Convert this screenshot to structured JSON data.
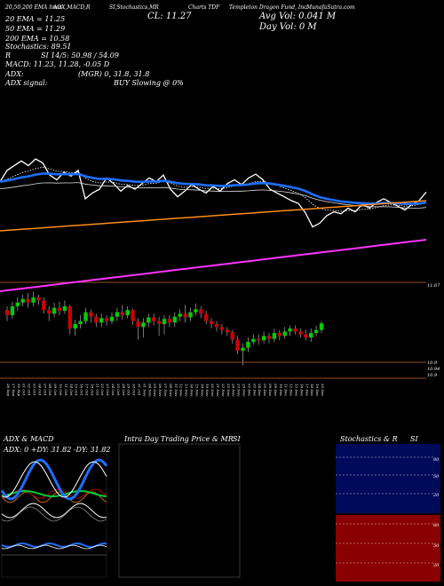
{
  "header": {
    "line1_left": "20,50,200 EMA lines",
    "line1_mid1": "ADX,MACD,R",
    "line1_mid2": "SI,Stochastics,MR",
    "line1_mid3": "MR",
    "line1_mid4": "Charts TDF",
    "line1_right": "Templeton Dragon Fund, Inc.",
    "line1_site": "MunafaSutra.com",
    "cl": "CL: 11.27",
    "avg_vol": "Avg Vol: 0.041 M",
    "day_vol": "Day Vol: 0  M",
    "ema20": "20  EMA = 11.25",
    "ema50": "50  EMA = 11.29",
    "ema200": "200  EMA = 10.58",
    "stochastics": "Stochastics: 89.51",
    "r": "R",
    "si": "SI 14/5: 50.98 / 54.09",
    "macd": "MACD: 11.23, 11.28, -0.05 D",
    "adx": "ADX:",
    "adx_val": "(MGR) 0,  31.8,  31.8",
    "adx_signal": "ADX signal:",
    "buy_slowing": "BUY Slowing @ 0%"
  },
  "colors": {
    "background": "#000000",
    "ema20": "#ffffff",
    "ema50": "#1e6fff",
    "ema200": "#ff8c1a",
    "long_line": "#ff33ff",
    "up_candle": "#00cc00",
    "down_candle": "#cc0000",
    "ref_line": "#c86428"
  },
  "price_labels": {
    "p1": "11.67",
    "p2": "10.9",
    "p3": "10.94",
    "p4": "10.9"
  },
  "chart_data": {
    "type": "line",
    "x": [
      "26 Sep",
      "27 Sep",
      "30 Sep",
      "01 Oct",
      "02 Oct",
      "03 Oct",
      "04 Oct",
      "07 Oct",
      "08 Oct",
      "09 Oct",
      "10 Oct",
      "11 Oct",
      "14 Oct",
      "15 Oct",
      "16 Oct",
      "17 Oct",
      "18 Oct",
      "21 Oct",
      "22 Oct",
      "23 Oct",
      "24 Oct",
      "25 Oct",
      "28 Oct",
      "29 Oct",
      "30 Oct",
      "31 Oct",
      "01 Nov",
      "04 Nov",
      "05 Nov",
      "06 Nov",
      "07 Nov",
      "08 Nov",
      "11 Nov",
      "12 Nov",
      "13 Nov",
      "14 Nov",
      "15 Nov",
      "18 Nov",
      "19 Nov",
      "20 Nov",
      "21 Nov",
      "22 Nov",
      "25 Nov",
      "26 Nov",
      "27 Nov",
      "29 Nov",
      "02 Dec",
      "03 Dec",
      "04 Dec",
      "05 Dec",
      "06 Dec",
      "09 Dec",
      "10 Dec",
      "11 Dec",
      "12 Dec",
      "13 Dec",
      "16 Dec",
      "17 Dec",
      "18 Dec",
      "19 Dec",
      "20 Dec"
    ],
    "candles": [
      {
        "o": 11.45,
        "c": 11.38,
        "h": 11.5,
        "l": 11.3
      },
      {
        "o": 11.38,
        "c": 11.5,
        "h": 11.56,
        "l": 11.33
      },
      {
        "o": 11.5,
        "c": 11.55,
        "h": 11.62,
        "l": 11.44
      },
      {
        "o": 11.55,
        "c": 11.6,
        "h": 11.66,
        "l": 11.5
      },
      {
        "o": 11.6,
        "c": 11.55,
        "h": 11.68,
        "l": 11.48
      },
      {
        "o": 11.55,
        "c": 11.62,
        "h": 11.7,
        "l": 11.5
      },
      {
        "o": 11.62,
        "c": 11.58,
        "h": 11.66,
        "l": 11.52
      },
      {
        "o": 11.58,
        "c": 11.45,
        "h": 11.62,
        "l": 11.4
      },
      {
        "o": 11.45,
        "c": 11.4,
        "h": 11.5,
        "l": 11.3
      },
      {
        "o": 11.4,
        "c": 11.48,
        "h": 11.55,
        "l": 11.35
      },
      {
        "o": 11.48,
        "c": 11.44,
        "h": 11.56,
        "l": 11.38
      },
      {
        "o": 11.44,
        "c": 11.5,
        "h": 11.58,
        "l": 11.4
      },
      {
        "o": 11.5,
        "c": 11.2,
        "h": 11.52,
        "l": 11.12
      },
      {
        "o": 11.2,
        "c": 11.26,
        "h": 11.32,
        "l": 11.1
      },
      {
        "o": 11.26,
        "c": 11.3,
        "h": 11.38,
        "l": 11.2
      },
      {
        "o": 11.3,
        "c": 11.42,
        "h": 11.48,
        "l": 11.26
      },
      {
        "o": 11.42,
        "c": 11.36,
        "h": 11.46,
        "l": 11.28
      },
      {
        "o": 11.36,
        "c": 11.28,
        "h": 11.4,
        "l": 11.22
      },
      {
        "o": 11.28,
        "c": 11.34,
        "h": 11.4,
        "l": 11.22
      },
      {
        "o": 11.34,
        "c": 11.3,
        "h": 11.38,
        "l": 11.24
      },
      {
        "o": 11.3,
        "c": 11.36,
        "h": 11.42,
        "l": 11.26
      },
      {
        "o": 11.36,
        "c": 11.42,
        "h": 11.48,
        "l": 11.3
      },
      {
        "o": 11.42,
        "c": 11.38,
        "h": 11.52,
        "l": 11.32
      },
      {
        "o": 11.38,
        "c": 11.45,
        "h": 11.5,
        "l": 11.34
      },
      {
        "o": 11.45,
        "c": 11.3,
        "h": 11.47,
        "l": 11.25
      },
      {
        "o": 11.3,
        "c": 11.22,
        "h": 11.34,
        "l": 11.05
      },
      {
        "o": 11.22,
        "c": 11.28,
        "h": 11.34,
        "l": 11.08
      },
      {
        "o": 11.28,
        "c": 11.35,
        "h": 11.4,
        "l": 11.22
      },
      {
        "o": 11.35,
        "c": 11.3,
        "h": 11.4,
        "l": 11.24
      },
      {
        "o": 11.3,
        "c": 11.26,
        "h": 11.36,
        "l": 11.1
      },
      {
        "o": 11.26,
        "c": 11.33,
        "h": 11.38,
        "l": 11.12
      },
      {
        "o": 11.33,
        "c": 11.28,
        "h": 11.38,
        "l": 11.22
      },
      {
        "o": 11.28,
        "c": 11.36,
        "h": 11.42,
        "l": 11.22
      },
      {
        "o": 11.36,
        "c": 11.4,
        "h": 11.46,
        "l": 11.3
      },
      {
        "o": 11.4,
        "c": 11.35,
        "h": 11.52,
        "l": 11.28
      },
      {
        "o": 11.35,
        "c": 11.42,
        "h": 11.48,
        "l": 11.3
      },
      {
        "o": 11.42,
        "c": 11.46,
        "h": 11.54,
        "l": 11.38
      },
      {
        "o": 11.46,
        "c": 11.4,
        "h": 11.5,
        "l": 11.34
      },
      {
        "o": 11.4,
        "c": 11.3,
        "h": 11.44,
        "l": 11.26
      },
      {
        "o": 11.3,
        "c": 11.26,
        "h": 11.34,
        "l": 11.2
      },
      {
        "o": 11.26,
        "c": 11.22,
        "h": 11.3,
        "l": 11.16
      },
      {
        "o": 11.22,
        "c": 11.18,
        "h": 11.26,
        "l": 11.12
      },
      {
        "o": 11.18,
        "c": 11.15,
        "h": 11.22,
        "l": 11.1
      },
      {
        "o": 11.15,
        "c": 11.05,
        "h": 11.18,
        "l": 11.0
      },
      {
        "o": 11.05,
        "c": 10.9,
        "h": 11.1,
        "l": 10.85
      },
      {
        "o": 10.9,
        "c": 10.94,
        "h": 11.0,
        "l": 10.7
      },
      {
        "o": 10.94,
        "c": 11.02,
        "h": 11.08,
        "l": 10.88
      },
      {
        "o": 11.02,
        "c": 11.06,
        "h": 11.12,
        "l": 10.98
      },
      {
        "o": 11.06,
        "c": 11.04,
        "h": 11.12,
        "l": 10.98
      },
      {
        "o": 11.04,
        "c": 11.1,
        "h": 11.16,
        "l": 11.0
      },
      {
        "o": 11.1,
        "c": 11.06,
        "h": 11.14,
        "l": 11.0
      },
      {
        "o": 11.06,
        "c": 11.14,
        "h": 11.2,
        "l": 11.02
      },
      {
        "o": 11.14,
        "c": 11.1,
        "h": 11.18,
        "l": 11.04
      },
      {
        "o": 11.1,
        "c": 11.16,
        "h": 11.22,
        "l": 11.06
      },
      {
        "o": 11.16,
        "c": 11.2,
        "h": 11.24,
        "l": 11.1
      },
      {
        "o": 11.2,
        "c": 11.16,
        "h": 11.24,
        "l": 11.12
      },
      {
        "o": 11.16,
        "c": 11.12,
        "h": 11.2,
        "l": 11.08
      },
      {
        "o": 11.12,
        "c": 11.08,
        "h": 11.18,
        "l": 11.04
      },
      {
        "o": 11.08,
        "c": 11.14,
        "h": 11.2,
        "l": 11.02
      },
      {
        "o": 11.14,
        "c": 11.18,
        "h": 11.24,
        "l": 11.1
      },
      {
        "o": 11.18,
        "c": 11.27,
        "h": 11.3,
        "l": 11.14
      }
    ],
    "ylim": [
      10.6,
      11.8
    ],
    "stochastics_level": 89.51,
    "si_levels": [
      50.98,
      54.09
    ],
    "adx_values": {
      "di_plus": 31.82,
      "di_minus": 31.82,
      "adx": 0
    },
    "stoch_axis_ticks": [
      "80",
      "50",
      "20"
    ],
    "si_axis_ticks": [
      "80",
      "50",
      "20"
    ]
  },
  "panels": {
    "adx_title": "ADX  & MACD",
    "adx_values": "ADX: 0  +DY: 31.82  -DY: 31.82",
    "intraday_title": "Intra Day Trading Price  & MR",
    "intraday_si": "SI",
    "stoch_title": "Stochastics & R",
    "stoch_si": "SI",
    "stoch_val": "89.51"
  }
}
